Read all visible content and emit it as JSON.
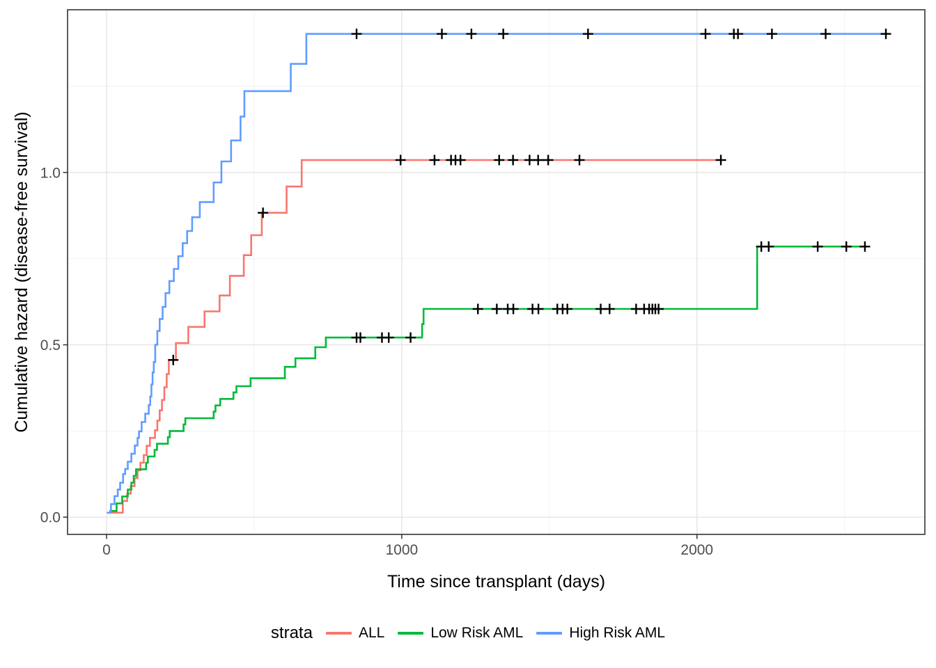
{
  "chart_data": {
    "type": "line",
    "subtype": "step-cumulative-hazard",
    "title": "",
    "xlabel": "Time since transplant (days)",
    "ylabel": "Cumulative hazard (disease-free survival)",
    "xlim": [
      -132,
      2772
    ],
    "ylim": [
      -0.05,
      1.472
    ],
    "x_major_ticks": [
      0,
      1000,
      2000
    ],
    "x_tick_labels": [
      "0",
      "1000",
      "2000"
    ],
    "x_minor_ticks": [
      500,
      1500,
      2500
    ],
    "y_major_ticks": [
      0.0,
      0.5,
      1.0
    ],
    "y_tick_labels": [
      "0.0",
      "0.5",
      "1.0"
    ],
    "y_minor_ticks": [
      0.25,
      0.75,
      1.25
    ],
    "grid": true,
    "censor_marker": "+",
    "legend": {
      "title": "strata",
      "position": "bottom"
    },
    "theme": {
      "background": "#FFFFFF",
      "grid_major": "#E4E4E4",
      "grid_minor": "#F2F2F2",
      "border": "#333333",
      "tick_text": "#4D4D4D",
      "censor_color": "#000000"
    },
    "series": [
      {
        "name": "ALL",
        "color": "#F8766D",
        "end": 2081,
        "steps": [
          [
            1,
            0.013
          ],
          [
            55,
            0.047
          ],
          [
            70,
            0.068
          ],
          [
            82,
            0.09
          ],
          [
            95,
            0.113
          ],
          [
            105,
            0.136
          ],
          [
            115,
            0.158
          ],
          [
            126,
            0.18
          ],
          [
            136,
            0.207
          ],
          [
            147,
            0.23
          ],
          [
            164,
            0.252
          ],
          [
            172,
            0.28
          ],
          [
            180,
            0.31
          ],
          [
            188,
            0.34
          ],
          [
            196,
            0.377
          ],
          [
            204,
            0.415
          ],
          [
            211,
            0.456
          ],
          [
            235,
            0.505
          ],
          [
            277,
            0.552
          ],
          [
            332,
            0.597
          ],
          [
            383,
            0.643
          ],
          [
            418,
            0.7
          ],
          [
            465,
            0.76
          ],
          [
            490,
            0.818
          ],
          [
            526,
            0.883
          ],
          [
            610,
            0.959
          ],
          [
            661,
            1.036
          ]
        ],
        "censors": [
          [
            226,
            0.456
          ],
          [
            530,
            0.883
          ],
          [
            996,
            1.036
          ],
          [
            1111,
            1.036
          ],
          [
            1167,
            1.036
          ],
          [
            1182,
            1.036
          ],
          [
            1199,
            1.036
          ],
          [
            1330,
            1.036
          ],
          [
            1377,
            1.036
          ],
          [
            1433,
            1.036
          ],
          [
            1462,
            1.036
          ],
          [
            1496,
            1.036
          ],
          [
            1602,
            1.036
          ],
          [
            2081,
            1.036
          ]
        ]
      },
      {
        "name": "Low Risk AML",
        "color": "#00BA38",
        "end": 2569,
        "steps": [
          [
            10,
            0.018
          ],
          [
            34,
            0.04
          ],
          [
            53,
            0.06
          ],
          [
            72,
            0.08
          ],
          [
            84,
            0.1
          ],
          [
            92,
            0.12
          ],
          [
            100,
            0.139
          ],
          [
            134,
            0.158
          ],
          [
            140,
            0.176
          ],
          [
            163,
            0.195
          ],
          [
            171,
            0.213
          ],
          [
            208,
            0.232
          ],
          [
            214,
            0.25
          ],
          [
            261,
            0.269
          ],
          [
            267,
            0.287
          ],
          [
            363,
            0.306
          ],
          [
            369,
            0.324
          ],
          [
            385,
            0.343
          ],
          [
            430,
            0.362
          ],
          [
            440,
            0.38
          ],
          [
            488,
            0.403
          ],
          [
            604,
            0.436
          ],
          [
            640,
            0.461
          ],
          [
            707,
            0.493
          ],
          [
            743,
            0.521
          ],
          [
            1069,
            0.56
          ],
          [
            1074,
            0.604
          ],
          [
            2204,
            0.785
          ]
        ],
        "censors": [
          [
            847,
            0.521
          ],
          [
            860,
            0.521
          ],
          [
            933,
            0.521
          ],
          [
            956,
            0.521
          ],
          [
            1030,
            0.521
          ],
          [
            1258,
            0.604
          ],
          [
            1322,
            0.604
          ],
          [
            1359,
            0.604
          ],
          [
            1378,
            0.604
          ],
          [
            1443,
            0.604
          ],
          [
            1463,
            0.604
          ],
          [
            1527,
            0.604
          ],
          [
            1545,
            0.604
          ],
          [
            1561,
            0.604
          ],
          [
            1674,
            0.604
          ],
          [
            1704,
            0.604
          ],
          [
            1794,
            0.604
          ],
          [
            1821,
            0.604
          ],
          [
            1838,
            0.604
          ],
          [
            1849,
            0.604
          ],
          [
            1859,
            0.604
          ],
          [
            1870,
            0.604
          ],
          [
            2218,
            0.785
          ],
          [
            2243,
            0.785
          ],
          [
            2409,
            0.785
          ],
          [
            2506,
            0.785
          ],
          [
            2569,
            0.785
          ]
        ]
      },
      {
        "name": "High Risk AML",
        "color": "#619CFF",
        "end": 2640,
        "steps": [
          [
            2,
            0.013
          ],
          [
            15,
            0.038
          ],
          [
            27,
            0.061
          ],
          [
            38,
            0.08
          ],
          [
            46,
            0.1
          ],
          [
            56,
            0.125
          ],
          [
            63,
            0.14
          ],
          [
            72,
            0.161
          ],
          [
            84,
            0.184
          ],
          [
            96,
            0.208
          ],
          [
            105,
            0.23
          ],
          [
            110,
            0.249
          ],
          [
            119,
            0.276
          ],
          [
            131,
            0.3
          ],
          [
            143,
            0.325
          ],
          [
            148,
            0.35
          ],
          [
            152,
            0.385
          ],
          [
            156,
            0.42
          ],
          [
            160,
            0.45
          ],
          [
            165,
            0.5
          ],
          [
            172,
            0.54
          ],
          [
            180,
            0.575
          ],
          [
            190,
            0.61
          ],
          [
            200,
            0.65
          ],
          [
            213,
            0.685
          ],
          [
            228,
            0.72
          ],
          [
            243,
            0.757
          ],
          [
            258,
            0.795
          ],
          [
            273,
            0.83
          ],
          [
            290,
            0.87
          ],
          [
            316,
            0.914
          ],
          [
            363,
            0.971
          ],
          [
            389,
            1.032
          ],
          [
            422,
            1.093
          ],
          [
            454,
            1.162
          ],
          [
            467,
            1.236
          ],
          [
            624,
            1.315
          ],
          [
            677,
            1.402
          ]
        ],
        "censors": [
          [
            847,
            1.402
          ],
          [
            1136,
            1.402
          ],
          [
            1236,
            1.402
          ],
          [
            1344,
            1.402
          ],
          [
            1631,
            1.402
          ],
          [
            2029,
            1.402
          ],
          [
            2125,
            1.402
          ],
          [
            2139,
            1.402
          ],
          [
            2254,
            1.402
          ],
          [
            2436,
            1.402
          ],
          [
            2640,
            1.402
          ]
        ]
      }
    ]
  }
}
